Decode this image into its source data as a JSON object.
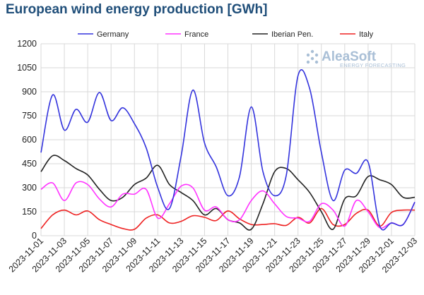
{
  "chart_data": {
    "type": "line",
    "title": "European wind energy production [GWh]",
    "ylim": [
      0,
      1200
    ],
    "yticks": [
      0,
      150,
      300,
      450,
      600,
      750,
      900,
      1050,
      1200
    ],
    "x_range": [
      "2023-11-01",
      "2023-12-03"
    ],
    "xticks": [
      "2023-11-01",
      "2023-11-03",
      "2023-11-05",
      "2023-11-07",
      "2023-11-09",
      "2023-11-11",
      "2023-11-13",
      "2023-11-15",
      "2023-11-17",
      "2023-11-19",
      "2023-11-21",
      "2023-11-23",
      "2023-11-25",
      "2023-11-27",
      "2023-11-29",
      "2023-12-01",
      "2023-12-03"
    ],
    "grid": true,
    "legend_position": "top",
    "x": [
      "2023-11-01",
      "2023-11-02",
      "2023-11-03",
      "2023-11-04",
      "2023-11-05",
      "2023-11-06",
      "2023-11-07",
      "2023-11-08",
      "2023-11-09",
      "2023-11-10",
      "2023-11-11",
      "2023-11-12",
      "2023-11-13",
      "2023-11-14",
      "2023-11-15",
      "2023-11-16",
      "2023-11-17",
      "2023-11-18",
      "2023-11-19",
      "2023-11-20",
      "2023-11-21",
      "2023-11-22",
      "2023-11-23",
      "2023-11-24",
      "2023-11-25",
      "2023-11-26",
      "2023-11-27",
      "2023-11-28",
      "2023-11-29",
      "2023-11-30",
      "2023-12-01",
      "2023-12-02",
      "2023-12-03"
    ],
    "series": [
      {
        "name": "Germany",
        "color": "#3333dd",
        "values": [
          520,
          880,
          660,
          790,
          710,
          895,
          720,
          800,
          700,
          550,
          300,
          170,
          500,
          910,
          580,
          430,
          250,
          370,
          805,
          400,
          250,
          380,
          1000,
          920,
          520,
          220,
          410,
          390,
          460,
          60,
          80,
          70,
          210
        ]
      },
      {
        "name": "France",
        "color": "#ff33ff",
        "values": [
          290,
          330,
          220,
          330,
          320,
          230,
          180,
          260,
          260,
          290,
          110,
          200,
          310,
          300,
          160,
          180,
          100,
          100,
          220,
          280,
          200,
          120,
          110,
          90,
          200,
          160,
          60,
          220,
          150,
          50,
          80,
          70,
          210
        ]
      },
      {
        "name": "Iberian Pen.",
        "color": "#222222",
        "values": [
          400,
          500,
          470,
          420,
          380,
          290,
          220,
          240,
          320,
          360,
          440,
          320,
          270,
          220,
          130,
          170,
          100,
          80,
          40,
          200,
          400,
          420,
          350,
          270,
          150,
          40,
          230,
          250,
          370,
          350,
          320,
          240,
          240
        ]
      },
      {
        "name": "Italy",
        "color": "#ee2222",
        "values": [
          45,
          130,
          160,
          130,
          155,
          100,
          70,
          45,
          40,
          110,
          130,
          80,
          90,
          125,
          115,
          95,
          155,
          105,
          70,
          70,
          75,
          65,
          115,
          80,
          170,
          70,
          70,
          140,
          160,
          60,
          145,
          160,
          160
        ]
      }
    ]
  },
  "logo": {
    "name": "AleaSoft",
    "tagline": "ENERGY FORECASTING"
  }
}
